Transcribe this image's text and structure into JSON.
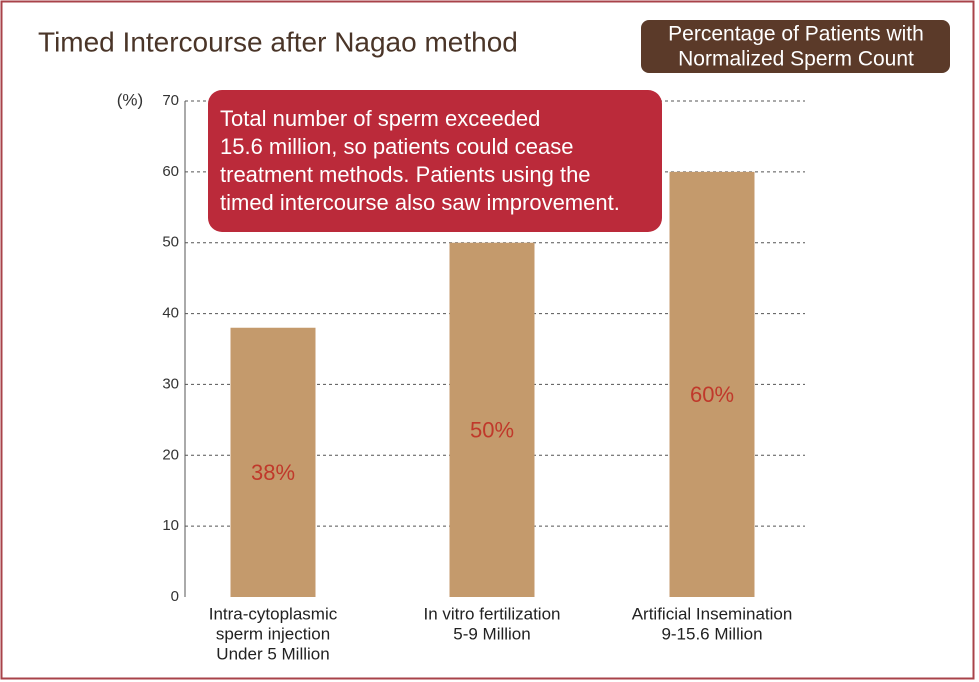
{
  "chart_data": {
    "type": "bar",
    "title": "Timed Intercourse after Nagao method",
    "subtitle": [
      "Percentage of Patients with",
      "Normalized Sperm Count"
    ],
    "annotation": [
      " Total number of sperm exceeded",
      "15.6 million, so patients could cease",
      "treatment methods. Patients using the",
      "timed intercourse also saw improvement."
    ],
    "y_label": "(%)",
    "categories": [
      [
        "Intra-cytoplasmic",
        "sperm injection",
        "Under 5 Million"
      ],
      [
        "In vitro fertilization",
        "5-9 Million"
      ],
      [
        "Artificial Insemination",
        "9-15.6 Million"
      ]
    ],
    "values": [
      38,
      50,
      60
    ],
    "value_labels": [
      "38%",
      "50%",
      "60%"
    ],
    "color": "#c49a6c",
    "ylim": [
      0,
      70
    ],
    "yticks": [
      0,
      10,
      20,
      30,
      40,
      50,
      60,
      70
    ],
    "grid": true
  }
}
